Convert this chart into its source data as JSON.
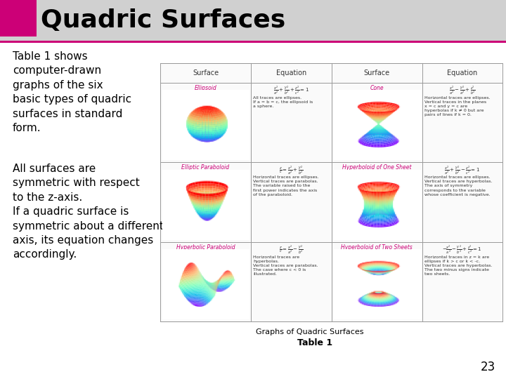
{
  "title": "Quadric Surfaces",
  "title_color": "#000000",
  "title_bg_color": "#d0d0d0",
  "title_accent_color": "#cc0077",
  "bg_color": "#ffffff",
  "paragraph1": "Table 1 shows\ncomputer-drawn\ngraphs of the six\nbasic types of quadric\nsurfaces in standard\nform.",
  "paragraph2": "All surfaces are\nsymmetric with respect\nto the z-axis.\nIf a quadric surface is\nsymmetric about a different\naxis, its equation changes\naccordingly.",
  "caption1": "Graphs of Quadric Surfaces",
  "caption2": "Table 1",
  "page_num": "23",
  "text_color": "#000000",
  "text_fontsize": 11,
  "title_fontsize": 26,
  "caption_fontsize": 8,
  "caption2_fontsize": 9,
  "page_fontsize": 12,
  "accent_pink": "#cc0077",
  "header_row": [
    "Surface",
    "Equation",
    "Surface",
    "Equation"
  ],
  "row_labels": [
    "Ellipsoid",
    "Elliptic Paraboloid",
    "Hyperbolic Paraboloid"
  ],
  "row_labels_right": [
    "Cone",
    "Hyperboloid of One Sheet",
    "Hyperboloid of Two Sheets"
  ],
  "grid_line_color": "#999999"
}
